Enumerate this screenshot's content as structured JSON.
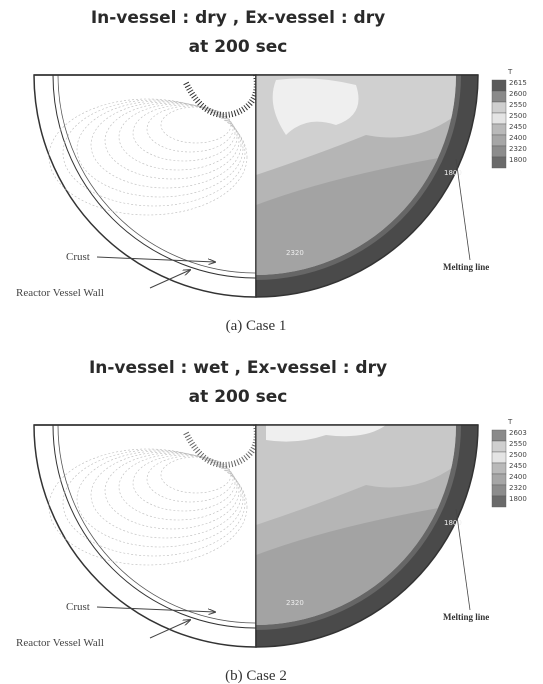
{
  "panels": [
    {
      "title_lines": [
        "In-vessel : dry , Ex-vessel : dry",
        "at 200 sec"
      ],
      "caption": "(a)  Case 1",
      "legend": {
        "title": "T",
        "labels": [
          "2615",
          "2600",
          "2550",
          "2500",
          "2450",
          "2400",
          "2320",
          "1800"
        ]
      },
      "annotations": {
        "crust": "Crust",
        "wall": "Reactor Vessel Wall",
        "melting_line": "Melting line"
      },
      "contour_labels": [
        "1800",
        "2320"
      ]
    },
    {
      "title_lines": [
        "In-vessel : wet , Ex-vessel : dry",
        "at 200 sec"
      ],
      "caption": "(b)  Case 2",
      "legend": {
        "title": "T",
        "labels": [
          "2603",
          "2550",
          "2500",
          "2450",
          "2400",
          "2320",
          "1800"
        ]
      },
      "annotations": {
        "crust": "Crust",
        "wall": "Reactor Vessel Wall",
        "melting_line": "Melting line"
      },
      "contour_labels": [
        "1800",
        "2320"
      ]
    }
  ]
}
